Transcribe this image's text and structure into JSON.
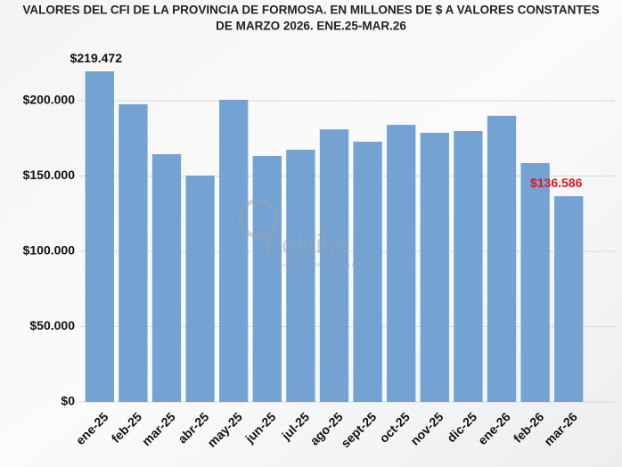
{
  "chart_data": {
    "type": "bar",
    "title": "VALORES DEL CFI DE LA PROVINCIA DE FORMOSA. EN MILLONES DE $ A VALORES CONSTANTES",
    "subtitle": "DE MARZO 2026. ENE.25-MAR.26",
    "watermark": "Politiké",
    "watermark_caption": "Observatorio de políticas públicas Formosa",
    "categories": [
      "ene-25",
      "feb-25",
      "mar-25",
      "abr-25",
      "may-25",
      "jun-25",
      "jul-25",
      "ago-25",
      "sept-25",
      "oct-25",
      "nov-25",
      "dic-25",
      "ene-26",
      "feb-26",
      "mar-26"
    ],
    "values": [
      219472,
      197600,
      164500,
      150300,
      200600,
      163300,
      167500,
      181000,
      172800,
      184000,
      178700,
      179900,
      190000,
      158600,
      136586
    ],
    "value_labels": [
      "$219.472",
      null,
      null,
      null,
      null,
      null,
      null,
      null,
      null,
      null,
      null,
      null,
      null,
      null,
      "$136.586"
    ],
    "value_label_colors": [
      "#111111",
      null,
      null,
      null,
      null,
      null,
      null,
      null,
      null,
      null,
      null,
      null,
      null,
      null,
      "#e3161d"
    ],
    "color": "#74a3d3",
    "ylim": [
      0,
      230000
    ],
    "yticks": [
      {
        "value": 0,
        "label": "$0"
      },
      {
        "value": 50000,
        "label": "$50.000"
      },
      {
        "value": 100000,
        "label": "$100.000"
      },
      {
        "value": 150000,
        "label": "$150.000"
      },
      {
        "value": 200000,
        "label": "$200.000"
      }
    ],
    "grid": true
  }
}
